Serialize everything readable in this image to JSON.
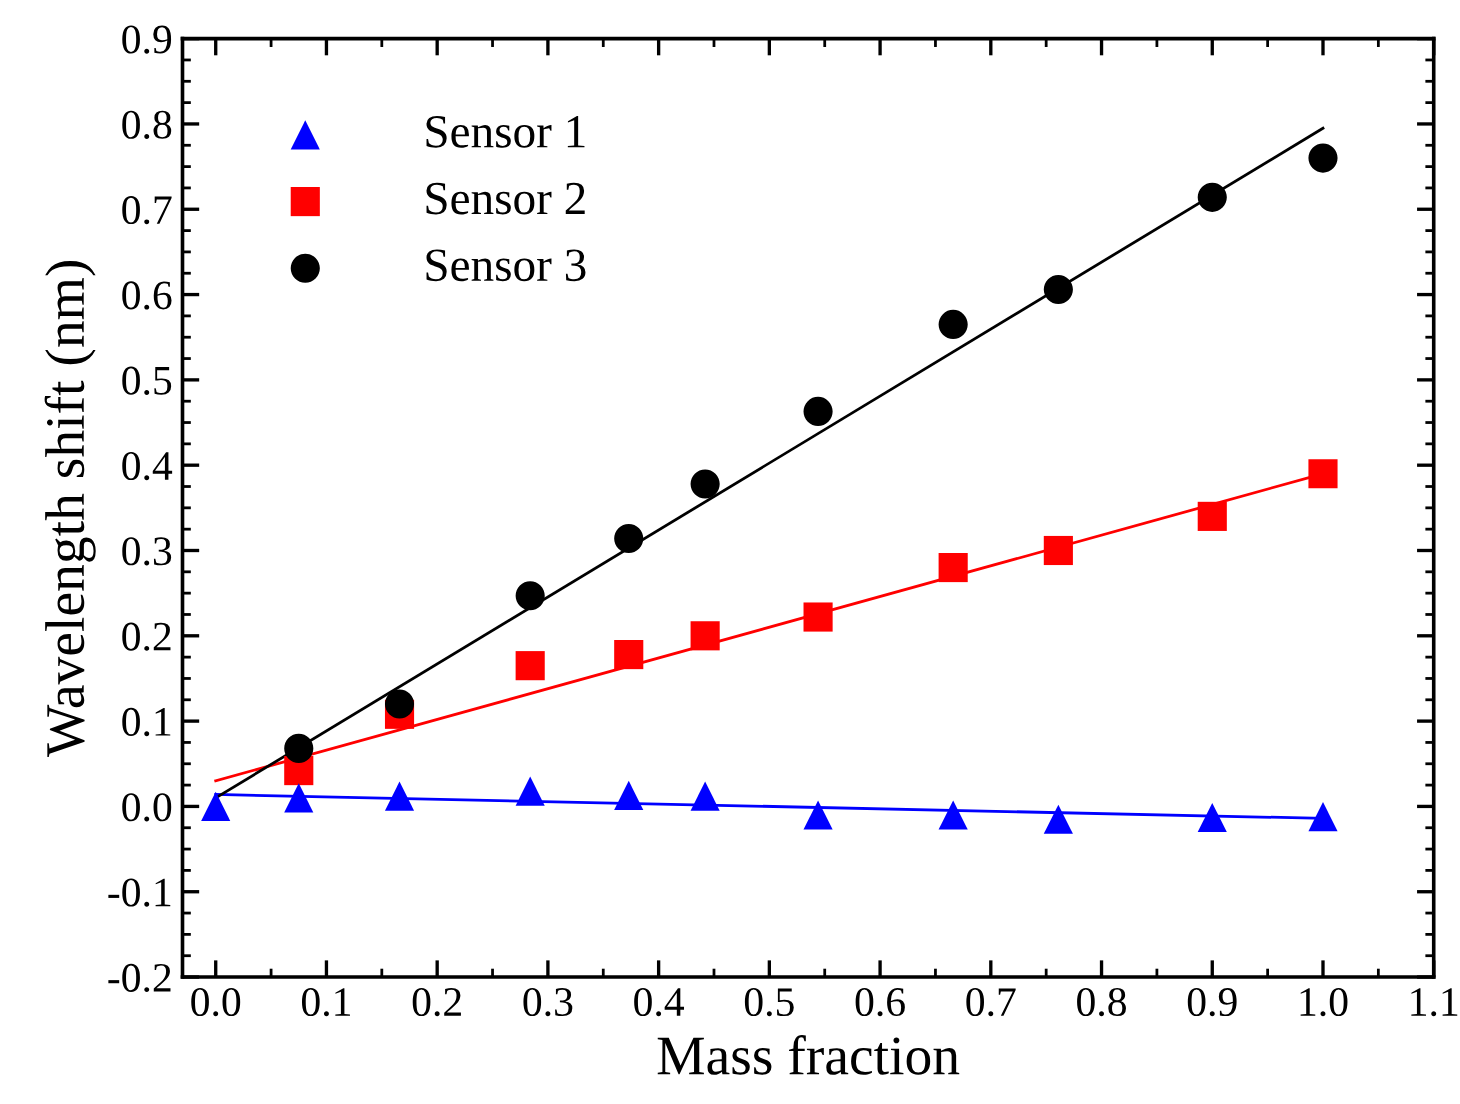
{
  "chart_data": {
    "type": "scatter",
    "xlabel": "Mass fraction",
    "ylabel": "Wavelength shift (nm)",
    "xlim": [
      -0.03,
      1.1
    ],
    "xticks": [
      {
        "value": 0,
        "label": "0.0"
      },
      0.1,
      0.2,
      0.3,
      0.4,
      0.5,
      0.6,
      0.7,
      0.8,
      0.9,
      {
        "value": 1,
        "label": "1.0"
      },
      1.1
    ],
    "ylim": [
      -0.2,
      0.9
    ],
    "yticks": [
      -0.2,
      -0.1,
      {
        "value": 0,
        "label": "0.0"
      },
      0.1,
      0.2,
      0.3,
      0.4,
      0.5,
      0.6,
      0.7,
      0.8,
      0.9
    ],
    "grid": false,
    "legend": "top left",
    "series": [
      {
        "name": "Sensor 1",
        "color": "#0000ff",
        "marker": "triangle",
        "x": [
          0,
          0.075,
          0.166,
          0.284,
          0.373,
          0.442,
          0.544,
          0.666,
          0.761,
          0.9,
          1.0
        ],
        "values": [
          0,
          0.01,
          0.012,
          0.018,
          0.013,
          0.012,
          -0.01,
          -0.01,
          -0.015,
          -0.013,
          -0.012
        ]
      },
      {
        "name": "Sensor 2",
        "color": "#ff0000",
        "marker": "square",
        "x": [
          0.075,
          0.166,
          0.284,
          0.373,
          0.442,
          0.544,
          0.666,
          0.761,
          0.9,
          1.0
        ],
        "values": [
          0.042,
          0.108,
          0.165,
          0.178,
          0.2,
          0.222,
          0.28,
          0.3,
          0.34,
          0.39
        ]
      },
      {
        "name": "Sensor 3",
        "color": "#000000",
        "marker": "circle",
        "x": [
          0.075,
          0.166,
          0.284,
          0.373,
          0.442,
          0.544,
          0.666,
          0.761,
          0.9,
          1.0
        ],
        "values": [
          0.068,
          0.12,
          0.247,
          0.314,
          0.378,
          0.463,
          0.565,
          0.606,
          0.714,
          0.76
        ]
      },
      {
        "type": "line",
        "color": "#0000ff",
        "line_style": "solid",
        "x": [
          0,
          1.0
        ],
        "values": [
          0.014,
          -0.014
        ]
      },
      {
        "type": "line",
        "color": "#ff0000",
        "line_style": "solid",
        "x": [
          0,
          1.0
        ],
        "values": [
          0.03,
          0.39
        ]
      },
      {
        "type": "line",
        "color": "#000000",
        "line_style": "solid",
        "x": [
          0,
          1.0
        ],
        "values": [
          0.01,
          0.795
        ]
      }
    ]
  }
}
